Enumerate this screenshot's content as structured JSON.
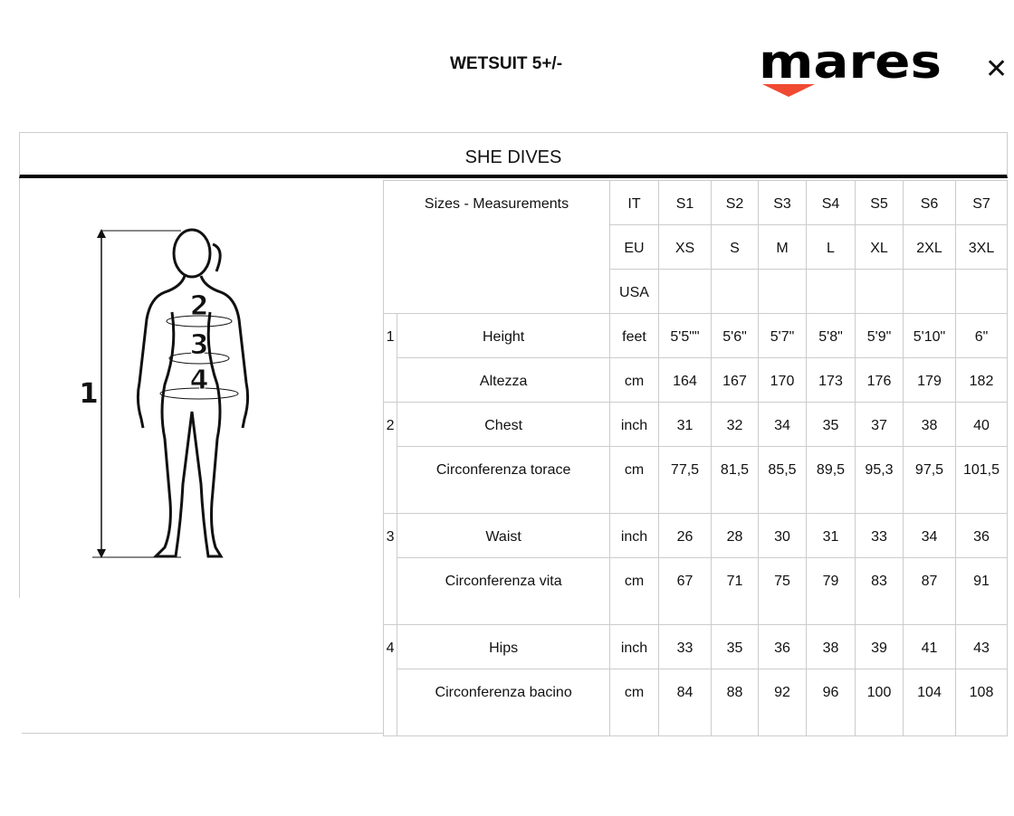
{
  "header": {
    "title": "WETSUIT 5+/-",
    "brand": "mares",
    "close_icon": "close-icon"
  },
  "section_title": "SHE DIVES",
  "colors": {
    "brand_arrow": "#f04a33",
    "text": "#111111",
    "border": "#cccccc"
  },
  "figure": {
    "labels": [
      "1",
      "2",
      "3",
      "4"
    ]
  },
  "table": {
    "header_label": "Sizes - Measurements",
    "size_rows": [
      {
        "system": "IT",
        "values": [
          "S1",
          "S2",
          "S3",
          "S4",
          "S5",
          "S6",
          "S7"
        ]
      },
      {
        "system": "EU",
        "values": [
          "XS",
          "S",
          "M",
          "L",
          "XL",
          "2XL",
          "3XL"
        ]
      },
      {
        "system": "USA",
        "values": [
          "",
          "",
          "",
          "",
          "",
          "",
          ""
        ]
      }
    ],
    "groups": [
      {
        "num": "1",
        "rows": [
          {
            "label": "Height",
            "unit": "feet",
            "values": [
              "5'5\"\"",
              "5'6\"",
              "5'7\"",
              "5'8\"",
              "5'9\"",
              "5'10\"",
              "6\""
            ]
          },
          {
            "label": "Altezza",
            "unit": "cm",
            "values": [
              "164",
              "167",
              "170",
              "173",
              "176",
              "179",
              "182"
            ]
          }
        ]
      },
      {
        "num": "2",
        "rows": [
          {
            "label": "Chest",
            "unit": "inch",
            "values": [
              "31",
              "32",
              "34",
              "35",
              "37",
              "38",
              "40"
            ]
          },
          {
            "label": "Circonferenza torace",
            "unit": "cm",
            "values": [
              "77,5",
              "81,5",
              "85,5",
              "89,5",
              "95,3",
              "97,5",
              "101,5"
            ]
          }
        ]
      },
      {
        "num": "3",
        "rows": [
          {
            "label": "Waist",
            "unit": "inch",
            "values": [
              "26",
              "28",
              "30",
              "31",
              "33",
              "34",
              "36"
            ]
          },
          {
            "label": "Circonferenza vita",
            "unit": "cm",
            "values": [
              "67",
              "71",
              "75",
              "79",
              "83",
              "87",
              "91"
            ]
          }
        ]
      },
      {
        "num": "4",
        "rows": [
          {
            "label": "Hips",
            "unit": "inch",
            "values": [
              "33",
              "35",
              "36",
              "38",
              "39",
              "41",
              "43"
            ]
          },
          {
            "label": "Circonferenza bacino",
            "unit": "cm",
            "values": [
              "84",
              "88",
              "92",
              "96",
              "100",
              "104",
              "108"
            ]
          }
        ]
      }
    ]
  }
}
